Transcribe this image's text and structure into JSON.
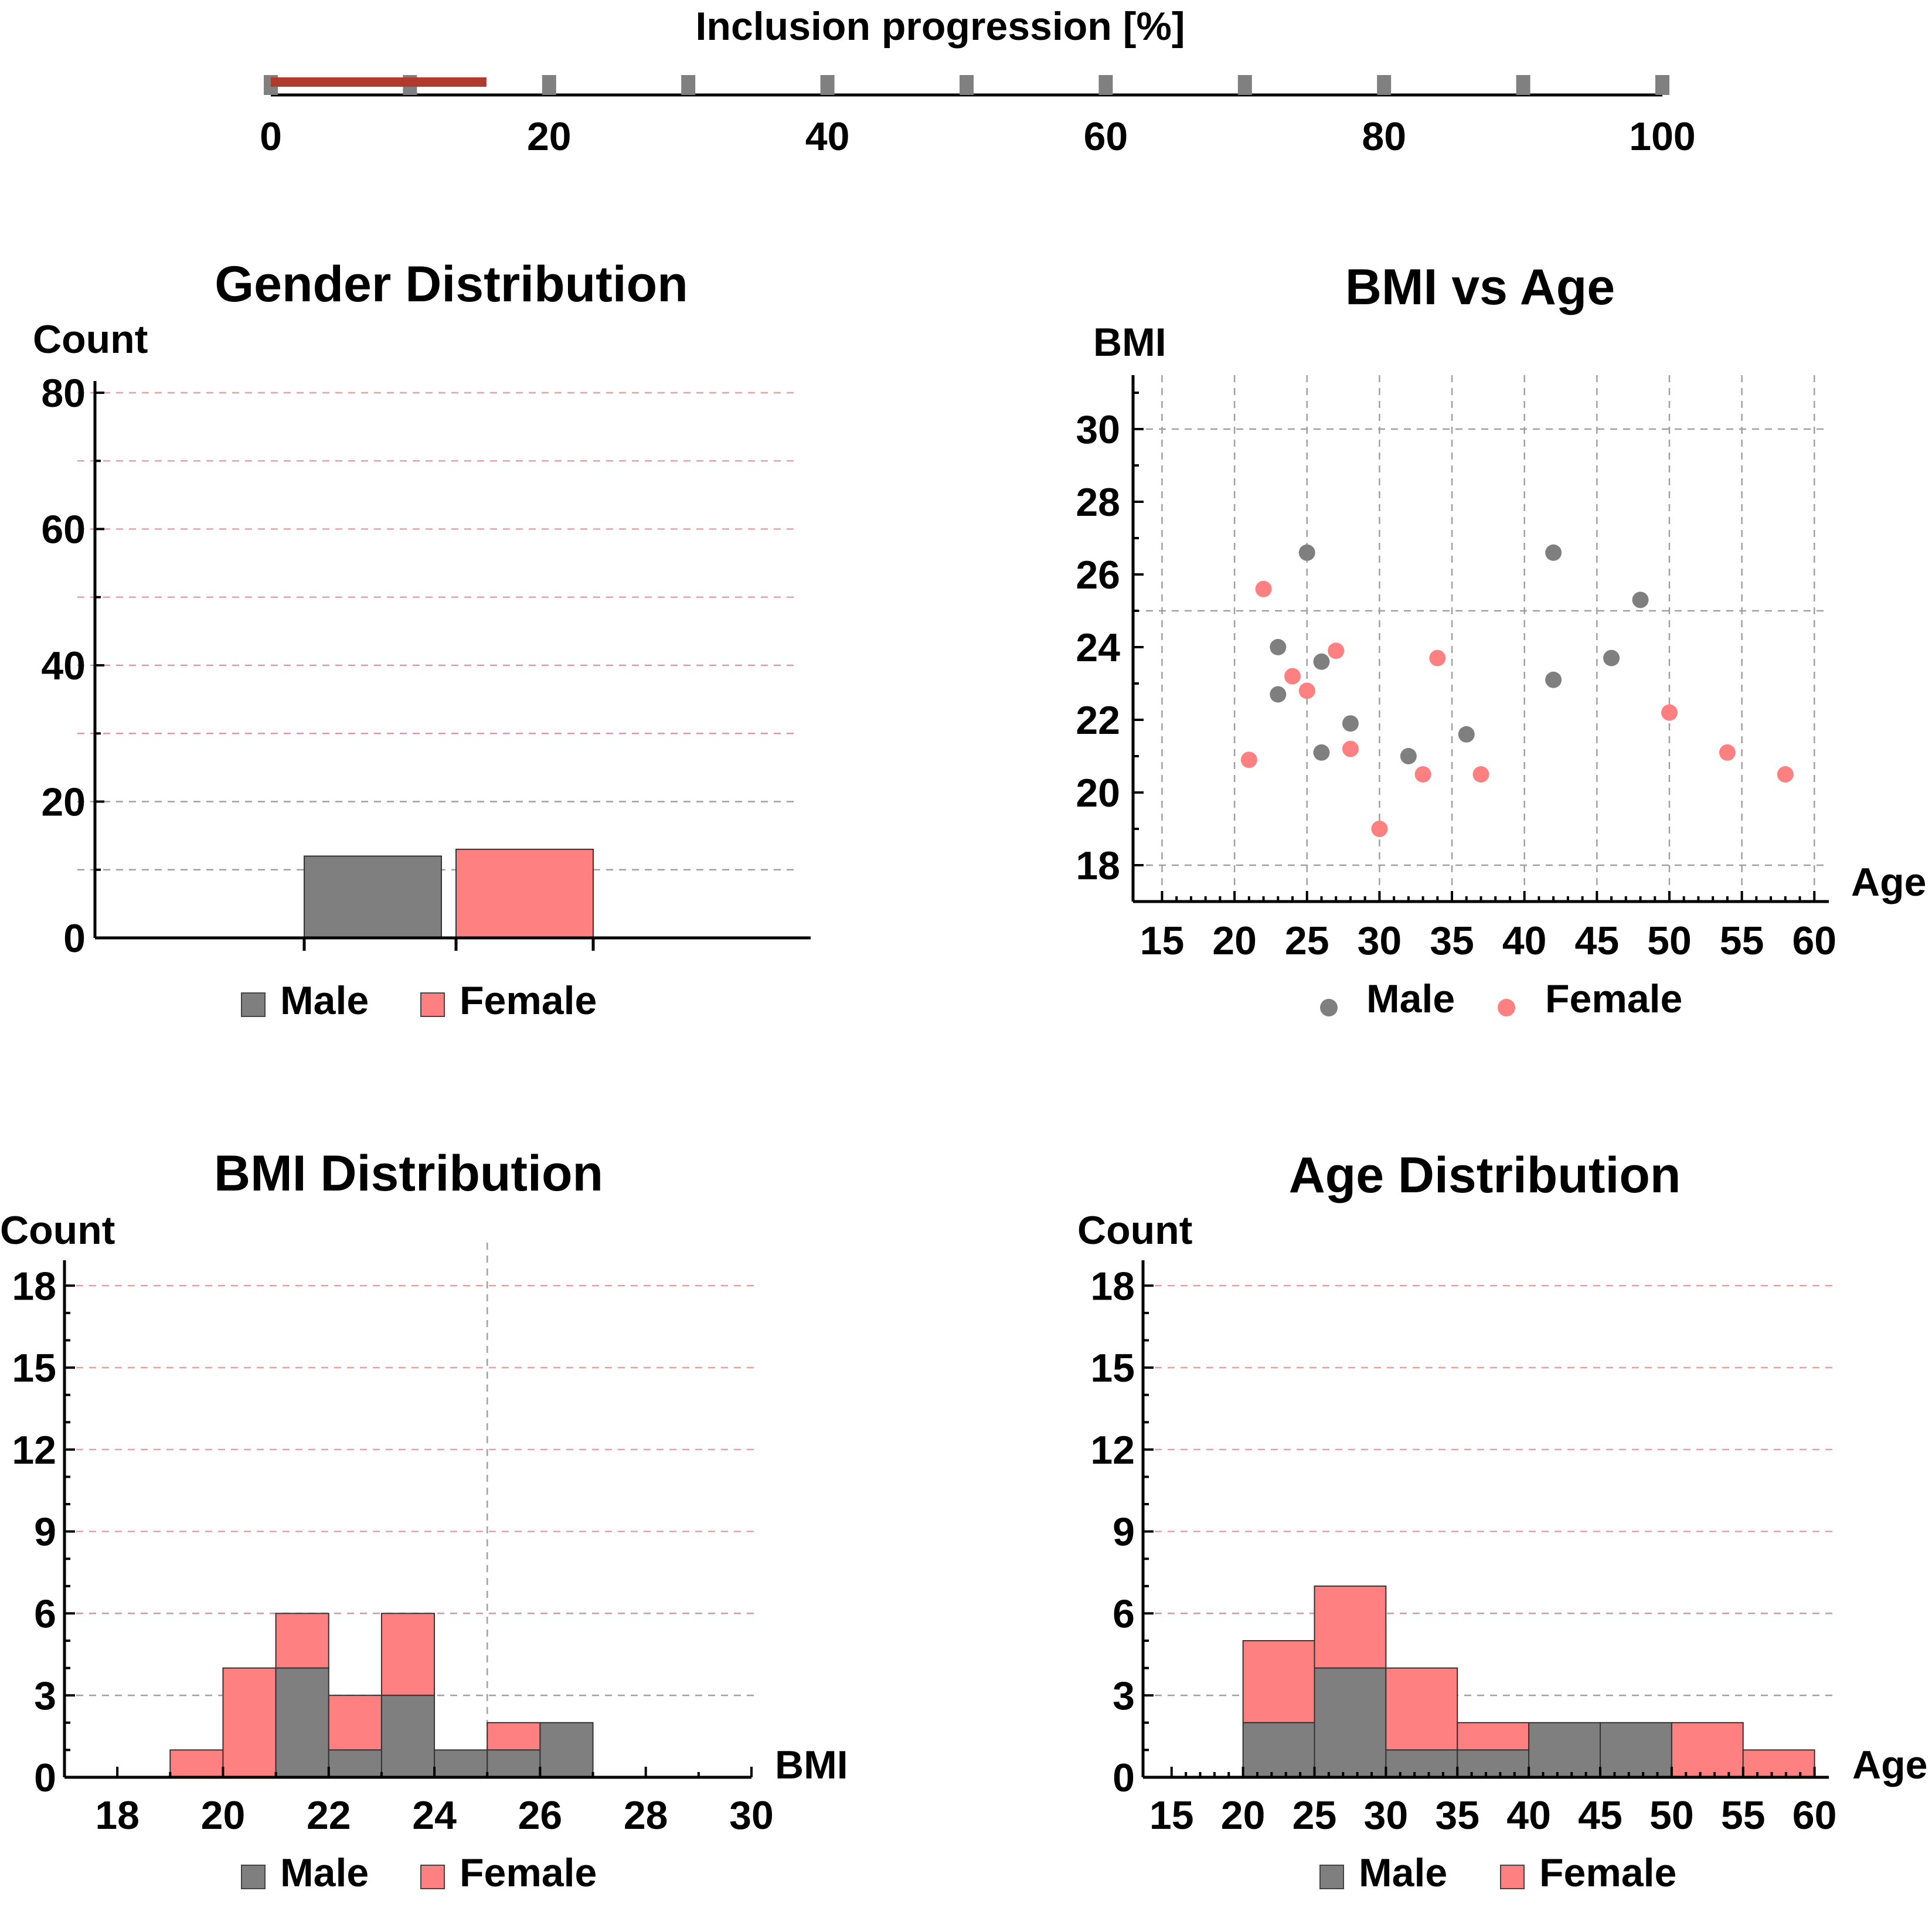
{
  "colors": {
    "male": "#7f7f7f",
    "female": "#ff8080",
    "progress": "#b03a2e",
    "tick_marker": "#808080",
    "axis": "#000000",
    "grid_red": "#e8a0a0",
    "grid_gray": "#a0a0a0"
  },
  "legend": {
    "male": "Male",
    "female": "Female"
  },
  "chart_data": [
    {
      "id": "progress",
      "type": "bar",
      "title": "Inclusion progression [%]",
      "xlim": [
        0,
        100
      ],
      "ticks": [
        0,
        20,
        40,
        60,
        80,
        100
      ],
      "marker_ticks": [
        0,
        10,
        20,
        30,
        40,
        50,
        60,
        70,
        80,
        90,
        100
      ],
      "value": 15.5
    },
    {
      "id": "gender",
      "type": "bar",
      "title": "Gender Distribution",
      "ylabel": "Count",
      "ylim": [
        0,
        80
      ],
      "yticks": [
        0,
        20,
        40,
        60,
        80
      ],
      "categories": [
        "Male",
        "Female"
      ],
      "values": [
        12,
        13
      ],
      "grid": [
        10,
        20,
        30,
        40,
        50,
        60,
        70,
        80
      ],
      "legend": "bottom-center"
    },
    {
      "id": "bmi_age",
      "type": "scatter",
      "title": "BMI vs Age",
      "xlabel": "Age",
      "ylabel": "BMI",
      "xlim": [
        13,
        61
      ],
      "ylim": [
        17,
        31
      ],
      "xticks": [
        15,
        20,
        25,
        30,
        35,
        40,
        45,
        50,
        55,
        60
      ],
      "yticks": [
        18,
        20,
        22,
        24,
        26,
        28,
        30
      ],
      "grid_x": [
        15,
        20,
        25,
        30,
        35,
        40,
        45,
        50,
        55,
        60
      ],
      "grid_y": [
        18,
        25,
        30
      ],
      "series": [
        {
          "name": "Male",
          "x": [
            23,
            23,
            25,
            26,
            26,
            28,
            32,
            36,
            42,
            42,
            46,
            48
          ],
          "y": [
            24.0,
            22.7,
            26.6,
            23.6,
            21.1,
            21.9,
            21.0,
            21.6,
            26.6,
            23.1,
            23.7,
            25.3
          ]
        },
        {
          "name": "Female",
          "x": [
            21,
            22,
            24,
            25,
            27,
            28,
            30,
            33,
            34,
            37,
            50,
            54,
            58
          ],
          "y": [
            20.9,
            25.6,
            23.2,
            22.8,
            23.9,
            21.2,
            19.0,
            20.5,
            23.7,
            20.5,
            22.2,
            21.1,
            20.5
          ]
        }
      ],
      "legend": "bottom-center"
    },
    {
      "id": "bmi_dist",
      "type": "bar",
      "title": "BMI Distribution",
      "xlabel": "BMI",
      "ylabel": "Count",
      "xlim": [
        17,
        30
      ],
      "ylim": [
        0,
        18.5
      ],
      "xticks": [
        18,
        20,
        22,
        24,
        26,
        28,
        30
      ],
      "yticks": [
        0,
        3,
        6,
        9,
        12,
        15,
        18
      ],
      "bins": [
        [
          19,
          20
        ],
        [
          20,
          21
        ],
        [
          21,
          22
        ],
        [
          22,
          23
        ],
        [
          23,
          24
        ],
        [
          24,
          25
        ],
        [
          25,
          26
        ],
        [
          26,
          27
        ]
      ],
      "series": [
        {
          "name": "Male",
          "values": [
            0,
            0,
            4,
            1,
            3,
            1,
            1,
            2
          ]
        },
        {
          "name": "Female",
          "values": [
            1,
            4,
            2,
            2,
            3,
            0,
            1,
            0
          ]
        }
      ],
      "grid_y": [
        3,
        6,
        9,
        12,
        15,
        18
      ],
      "vline": 25,
      "legend": "bottom-center"
    },
    {
      "id": "age_dist",
      "type": "bar",
      "title": "Age Distribution",
      "xlabel": "Age",
      "ylabel": "Count",
      "xlim": [
        13,
        61
      ],
      "ylim": [
        0,
        18.5
      ],
      "xticks": [
        15,
        20,
        25,
        30,
        35,
        40,
        45,
        50,
        55,
        60
      ],
      "yticks": [
        0,
        3,
        6,
        9,
        12,
        15,
        18
      ],
      "bins": [
        [
          20,
          25
        ],
        [
          25,
          30
        ],
        [
          30,
          35
        ],
        [
          35,
          40
        ],
        [
          40,
          45
        ],
        [
          45,
          50
        ],
        [
          50,
          55
        ],
        [
          55,
          60
        ]
      ],
      "series": [
        {
          "name": "Male",
          "values": [
            2,
            4,
            1,
            1,
            2,
            2,
            0,
            0
          ]
        },
        {
          "name": "Female",
          "values": [
            3,
            3,
            3,
            1,
            0,
            0,
            2,
            1
          ]
        }
      ],
      "grid_y": [
        3,
        6,
        9,
        12,
        15,
        18
      ],
      "legend": "bottom-center"
    }
  ]
}
